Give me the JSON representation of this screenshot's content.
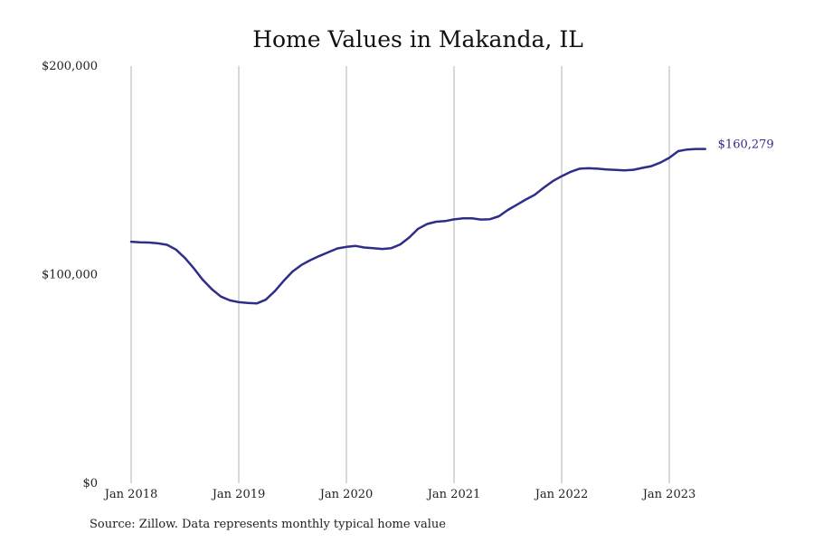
{
  "chart_data": {
    "type": "line",
    "title": "Home Values in Makanda, IL",
    "xlabel": "",
    "ylabel": "",
    "ylim": [
      0,
      200000
    ],
    "y_ticks": [
      {
        "value": 0,
        "label": "$0"
      },
      {
        "value": 100000,
        "label": "$100,000"
      },
      {
        "value": 200000,
        "label": "$200,000"
      }
    ],
    "x_ticks": [
      {
        "value": "2018-01",
        "label": "Jan 2018"
      },
      {
        "value": "2019-01",
        "label": "Jan 2019"
      },
      {
        "value": "2020-01",
        "label": "Jan 2020"
      },
      {
        "value": "2021-01",
        "label": "Jan 2021"
      },
      {
        "value": "2022-01",
        "label": "Jan 2022"
      },
      {
        "value": "2023-01",
        "label": "Jan 2023"
      }
    ],
    "grid": "vertical",
    "line_color": "#2e2e8a",
    "end_label": "$160,279",
    "series": [
      {
        "x": [
          "2018-01",
          "2018-02",
          "2018-03",
          "2018-04",
          "2018-05",
          "2018-06",
          "2018-07",
          "2018-08",
          "2018-09",
          "2018-10",
          "2018-11",
          "2018-12",
          "2019-01",
          "2019-02",
          "2019-03",
          "2019-04",
          "2019-05",
          "2019-06",
          "2019-07",
          "2019-08",
          "2019-09",
          "2019-10",
          "2019-11",
          "2019-12",
          "2020-01",
          "2020-02",
          "2020-03",
          "2020-04",
          "2020-05",
          "2020-06",
          "2020-07",
          "2020-08",
          "2020-09",
          "2020-10",
          "2020-11",
          "2020-12",
          "2021-01",
          "2021-02",
          "2021-03",
          "2021-04",
          "2021-05",
          "2021-06",
          "2021-07",
          "2021-08",
          "2021-09",
          "2021-10",
          "2021-11",
          "2021-12",
          "2022-01",
          "2022-02",
          "2022-03",
          "2022-04",
          "2022-05",
          "2022-06",
          "2022-07",
          "2022-08",
          "2022-09",
          "2022-10",
          "2022-11",
          "2022-12",
          "2023-01",
          "2023-02",
          "2023-03",
          "2023-04",
          "2023-05"
        ],
        "values": [
          115800,
          115500,
          115400,
          115000,
          114300,
          112000,
          108000,
          103000,
          97500,
          93000,
          89500,
          87700,
          86800,
          86400,
          86200,
          88000,
          92000,
          97000,
          101500,
          104700,
          107000,
          109000,
          110800,
          112600,
          113300,
          113800,
          113000,
          112700,
          112300,
          112700,
          114500,
          117800,
          122000,
          124300,
          125400,
          125700,
          126500,
          127000,
          127000,
          126400,
          126600,
          128000,
          131000,
          133500,
          136000,
          138300,
          141700,
          144800,
          147200,
          149300,
          150800,
          151000,
          150800,
          150400,
          150200,
          150000,
          150300,
          151200,
          152000,
          153700,
          156000,
          159200,
          160000,
          160279,
          160279
        ]
      }
    ]
  },
  "source_text": "Source: Zillow. Data represents monthly typical home value"
}
